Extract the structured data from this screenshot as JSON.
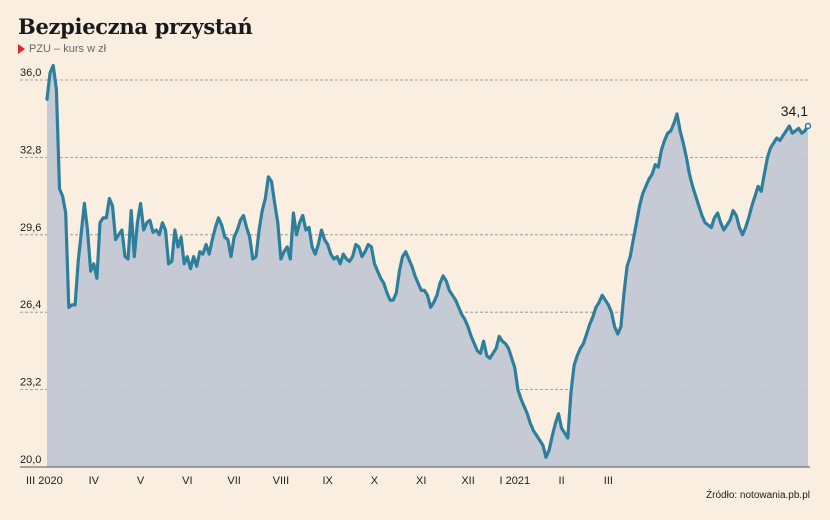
{
  "header": {
    "title": "Bezpieczna przystań",
    "subtitle": "PZU – kurs w zł"
  },
  "footer": {
    "source": "Źródło: notowania.pb.pl"
  },
  "colors": {
    "line": "#2e7f9c",
    "area": "#c3c7d4",
    "background": "#faeee1",
    "marker": "#e3262b"
  },
  "chart_data": {
    "type": "area",
    "title": "Bezpieczna przystań",
    "subtitle": "PZU – kurs w zł",
    "ylabel": "kurs w zł",
    "ylim": [
      20.0,
      36.0
    ],
    "yticks": [
      "20,0",
      "23,2",
      "26,4",
      "29,6",
      "32,8",
      "36,0"
    ],
    "ytick_values": [
      20.0,
      23.2,
      26.4,
      29.6,
      32.8,
      36.0
    ],
    "xticks": [
      "III 2020",
      "IV",
      "V",
      "VI",
      "VII",
      "VIII",
      "IX",
      "X",
      "XI",
      "XII",
      "I 2021",
      "II",
      "III"
    ],
    "xtick_index": [
      0,
      15,
      30,
      45,
      60,
      75,
      90,
      105,
      120,
      135,
      150,
      165,
      180
    ],
    "grid": true,
    "last_value_label": "34,1",
    "series": [
      {
        "values": [
          35.2,
          36.3,
          36.6,
          35.6,
          31.5,
          31.2,
          30.5,
          26.6,
          26.7,
          26.7,
          28.5,
          29.7,
          30.9,
          29.8,
          28.1,
          28.4,
          27.8,
          30.1,
          30.3,
          30.3,
          31.1,
          30.8,
          29.4,
          29.6,
          29.8,
          28.7,
          28.6,
          30.6,
          28.7,
          30.1,
          30.9,
          29.8,
          30.1,
          30.2,
          29.7,
          29.8,
          29.6,
          30.1,
          29.8,
          28.4,
          28.5,
          29.8,
          29.1,
          29.5,
          28.4,
          28.7,
          28.2,
          28.7,
          28.3,
          28.9,
          28.8,
          29.2,
          28.8,
          29.4,
          29.9,
          30.3,
          30.0,
          29.5,
          29.4,
          28.7,
          29.5,
          29.8,
          30.2,
          30.4,
          29.9,
          29.5,
          28.6,
          28.7,
          29.8,
          30.6,
          31.1,
          32.0,
          31.8,
          30.9,
          30.1,
          28.6,
          28.9,
          29.1,
          28.6,
          30.5,
          29.6,
          30.1,
          30.4,
          29.8,
          29.9,
          29.1,
          28.8,
          29.2,
          29.8,
          29.4,
          29.2,
          28.8,
          28.6,
          28.7,
          28.4,
          28.8,
          28.6,
          28.5,
          28.7,
          29.2,
          29.1,
          28.7,
          28.9,
          29.2,
          29.1,
          28.4,
          28.1,
          27.8,
          27.6,
          27.2,
          26.9,
          26.9,
          27.2,
          28.1,
          28.7,
          28.9,
          28.6,
          28.3,
          27.9,
          27.6,
          27.3,
          27.3,
          27.1,
          26.6,
          26.8,
          27.1,
          27.6,
          27.9,
          27.7,
          27.3,
          27.1,
          26.9,
          26.6,
          26.3,
          26.1,
          25.8,
          25.4,
          25.1,
          24.8,
          24.7,
          25.2,
          24.6,
          24.5,
          24.7,
          24.9,
          25.4,
          25.2,
          25.1,
          24.9,
          24.5,
          24.1,
          23.2,
          22.8,
          22.5,
          22.2,
          21.8,
          21.5,
          21.3,
          21.1,
          20.9,
          20.4,
          20.7,
          21.3,
          21.8,
          22.2,
          21.6,
          21.4,
          21.2,
          23.1,
          24.2,
          24.6,
          24.9,
          25.1,
          25.5,
          25.9,
          26.2,
          26.6,
          26.8,
          27.1,
          26.9,
          26.7,
          26.4,
          25.8,
          25.5,
          25.8,
          27.2,
          28.3,
          28.7,
          29.4,
          30.1,
          30.8,
          31.3,
          31.6,
          31.9,
          32.1,
          32.5,
          32.4,
          33.1,
          33.5,
          33.8,
          33.9,
          34.2,
          34.6,
          33.9,
          33.4,
          32.8,
          32.1,
          31.6,
          31.2,
          30.8,
          30.4,
          30.1,
          30.0,
          29.9,
          30.3,
          30.5,
          30.1,
          29.8,
          30.0,
          30.2,
          30.6,
          30.4,
          29.9,
          29.6,
          29.9,
          30.3,
          30.8,
          31.2,
          31.6,
          31.4,
          32.1,
          32.8,
          33.2,
          33.4,
          33.6,
          33.5,
          33.7,
          33.9,
          34.1,
          33.8,
          33.9,
          34.0,
          33.8,
          33.9,
          34.1
        ],
        "line_color": "#2e7f9c"
      }
    ]
  }
}
